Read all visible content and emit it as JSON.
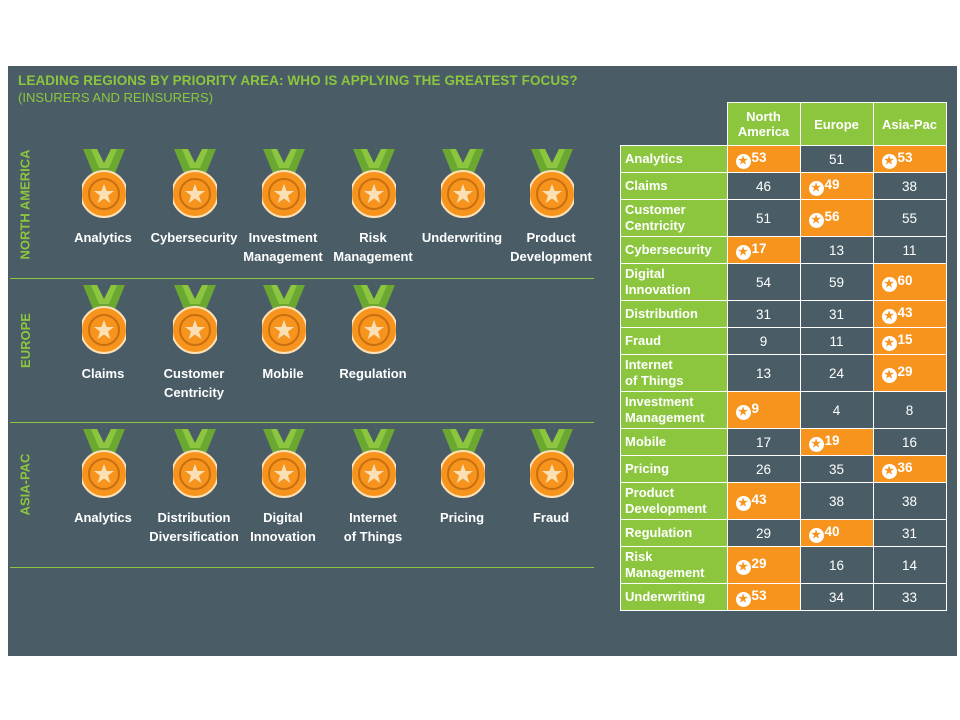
{
  "title": "LEADING REGIONS BY PRIORITY AREA: WHO IS APPLYING THE GREATEST FOCUS?",
  "subtitle": "(INSURERS AND REINSURERS)",
  "colors": {
    "background": "#4a5d67",
    "green": "#8cc63f",
    "orange": "#f7941d",
    "medal_ribbon": "#6aa832"
  },
  "regions": [
    {
      "label": "NORTH AMERICA",
      "medals": [
        "Analytics",
        "Cybersecurity",
        "Investment\nManagement",
        "Risk\nManagement",
        "Underwriting",
        "Product\nDevelopment"
      ]
    },
    {
      "label": "EUROPE",
      "medals": [
        "Claims",
        "Customer\nCentricity",
        "Mobile",
        "Regulation"
      ]
    },
    {
      "label": "ASIA-PAC",
      "medals": [
        "Analytics",
        "Distribution\nDiversification",
        "Digital\nInnovation",
        "Internet\nof Things",
        "Pricing",
        "Fraud"
      ]
    }
  ],
  "table": {
    "headers": [
      "North\nAmerica",
      "Europe",
      "Asia-Pac"
    ],
    "rows": [
      {
        "label": "Analytics",
        "values": [
          "53",
          "51",
          "53"
        ],
        "highlight": [
          0,
          2
        ]
      },
      {
        "label": "Claims",
        "values": [
          "46",
          "49",
          "38"
        ],
        "highlight": [
          1
        ]
      },
      {
        "label": "Customer\nCentricity",
        "values": [
          "51",
          "56",
          "55"
        ],
        "highlight": [
          1
        ]
      },
      {
        "label": "Cybersecurity",
        "values": [
          "17",
          "13",
          "11"
        ],
        "highlight": [
          0
        ]
      },
      {
        "label": "Digital\nInnovation",
        "values": [
          "54",
          "59",
          "60"
        ],
        "highlight": [
          2
        ]
      },
      {
        "label": "Distribution",
        "values": [
          "31",
          "31",
          "43"
        ],
        "highlight": [
          2
        ]
      },
      {
        "label": "Fraud",
        "values": [
          "9",
          "11",
          "15"
        ],
        "highlight": [
          2
        ]
      },
      {
        "label": "Internet\nof Things",
        "values": [
          "13",
          "24",
          "29"
        ],
        "highlight": [
          2
        ]
      },
      {
        "label": "Investment\nManagement",
        "values": [
          "9",
          "4",
          "8"
        ],
        "highlight": [
          0
        ]
      },
      {
        "label": "Mobile",
        "values": [
          "17",
          "19",
          "16"
        ],
        "highlight": [
          1
        ]
      },
      {
        "label": "Pricing",
        "values": [
          "26",
          "35",
          "36"
        ],
        "highlight": [
          2
        ]
      },
      {
        "label": "Product\nDevelopment",
        "values": [
          "43",
          "38",
          "38"
        ],
        "highlight": [
          0
        ]
      },
      {
        "label": "Regulation",
        "values": [
          "29",
          "40",
          "31"
        ],
        "highlight": [
          1
        ]
      },
      {
        "label": "Risk\nManagement",
        "values": [
          "29",
          "16",
          "14"
        ],
        "highlight": [
          0
        ]
      },
      {
        "label": "Underwriting",
        "values": [
          "53",
          "34",
          "33"
        ],
        "highlight": [
          0
        ]
      }
    ]
  }
}
